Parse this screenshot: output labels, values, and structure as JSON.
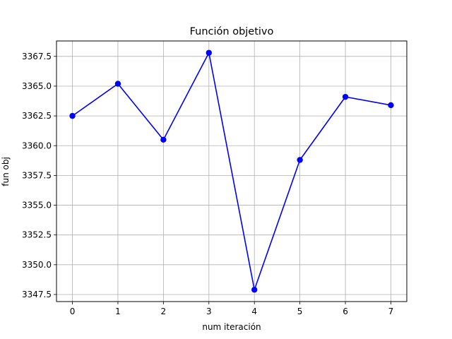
{
  "chart_data": {
    "type": "line",
    "title": "Función objetivo",
    "xlabel": "num iteración",
    "ylabel": "fun obj",
    "x": [
      0,
      1,
      2,
      3,
      4,
      5,
      6,
      7
    ],
    "y": [
      3362.5,
      3365.2,
      3360.5,
      3367.8,
      3347.9,
      3358.8,
      3364.1,
      3363.4
    ],
    "xticks": [
      "0",
      "1",
      "2",
      "3",
      "4",
      "5",
      "6",
      "7"
    ],
    "yticks": [
      "3347.5",
      "3350.0",
      "3352.5",
      "3355.0",
      "3357.5",
      "3360.0",
      "3362.5",
      "3365.0",
      "3367.5"
    ],
    "xlim": [
      -0.35,
      7.35
    ],
    "ylim": [
      3346.905,
      3368.795
    ],
    "grid": true,
    "color": "#0000ff",
    "grid_color": "#b0b0b0",
    "marker": "circle"
  }
}
